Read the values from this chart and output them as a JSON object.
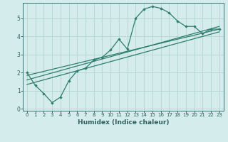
{
  "title": "",
  "xlabel": "Humidex (Indice chaleur)",
  "bg_color": "#d5ecec",
  "grid_color": "#b8d8d8",
  "line_color": "#2e7d6e",
  "xlim": [
    -0.5,
    23.5
  ],
  "ylim": [
    -0.1,
    5.85
  ],
  "xticks": [
    0,
    1,
    2,
    3,
    4,
    5,
    6,
    7,
    8,
    9,
    10,
    11,
    12,
    13,
    14,
    15,
    16,
    17,
    18,
    19,
    20,
    21,
    22,
    23
  ],
  "yticks": [
    0,
    1,
    2,
    3,
    4,
    5
  ],
  "main_x": [
    0,
    1,
    2,
    3,
    4,
    5,
    6,
    7,
    8,
    9,
    10,
    11,
    12,
    13,
    14,
    15,
    16,
    17,
    18,
    19,
    20,
    21,
    22,
    23
  ],
  "main_y": [
    2.0,
    1.3,
    0.85,
    0.35,
    0.65,
    1.55,
    2.1,
    2.25,
    2.7,
    2.85,
    3.25,
    3.85,
    3.3,
    5.0,
    5.5,
    5.65,
    5.55,
    5.3,
    4.85,
    4.55,
    4.55,
    4.15,
    4.4,
    4.4
  ],
  "line1_x": [
    0,
    23
  ],
  "line1_y": [
    1.85,
    4.4
  ],
  "line2_x": [
    0,
    23
  ],
  "line2_y": [
    1.6,
    4.55
  ],
  "line3_x": [
    0,
    23
  ],
  "line3_y": [
    1.35,
    4.25
  ],
  "xlabel_fontsize": 6.5,
  "xlabel_fontweight": "bold",
  "tick_fontsize": 5.5,
  "xlabel_color": "#2e6060"
}
